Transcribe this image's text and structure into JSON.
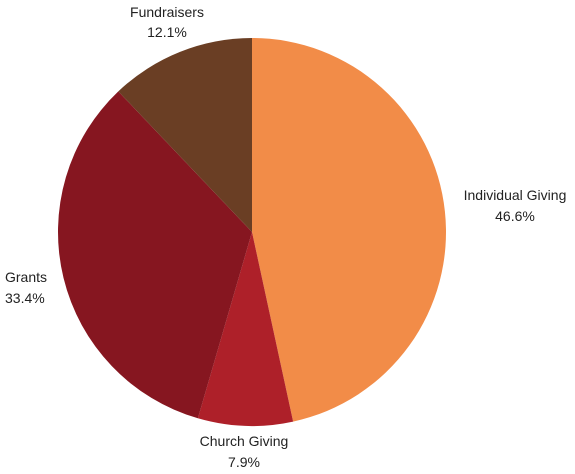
{
  "chart_data": {
    "type": "pie",
    "title": "",
    "start_angle_deg": 0,
    "direction": "clockwise",
    "slices": [
      {
        "label": "Individual Giving",
        "value": 46.6,
        "value_label": "46.6%",
        "color": "#F28C48"
      },
      {
        "label": "Church Giving",
        "value": 7.9,
        "value_label": "7.9%",
        "color": "#AE2029"
      },
      {
        "label": "Grants",
        "value": 33.4,
        "value_label": "33.4%",
        "color": "#861620"
      },
      {
        "label": "Fundraisers",
        "value": 12.1,
        "value_label": "12.1%",
        "color": "#6A3E24"
      }
    ],
    "legend": "none"
  }
}
